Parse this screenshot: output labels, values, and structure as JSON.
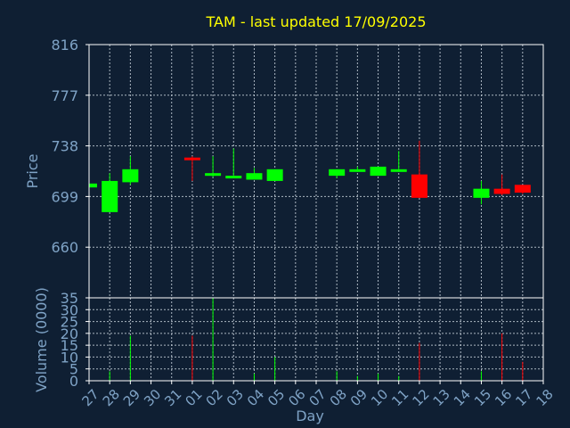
{
  "chart_data": {
    "type": "candlestick",
    "title": "TAM - last updated 17/09/2025",
    "xlabel": "Day",
    "ylabel_price": "Price",
    "ylabel_volume": "Volume (0000)",
    "x_ticks": [
      "27",
      "28",
      "29",
      "30",
      "31",
      "01",
      "02",
      "03",
      "04",
      "05",
      "06",
      "07",
      "08",
      "09",
      "10",
      "11",
      "12",
      "13",
      "14",
      "15",
      "16",
      "17",
      "18"
    ],
    "price_ylim": [
      621,
      816
    ],
    "price_ticks": [
      660,
      699,
      738,
      777,
      816
    ],
    "volume_ylim": [
      0,
      35
    ],
    "volume_ticks": [
      0,
      5,
      10,
      15,
      20,
      25,
      30,
      35
    ],
    "grid": true,
    "up_color": "#00ff00",
    "down_color": "#ff0000",
    "candles": [
      {
        "day": "27",
        "open": 706,
        "close": 709,
        "high": 709,
        "low": 706,
        "volume": 0
      },
      {
        "day": "28",
        "open": 687,
        "close": 711,
        "high": 717,
        "low": 687,
        "volume": 4
      },
      {
        "day": "29",
        "open": 710,
        "close": 720,
        "high": 730,
        "low": 708,
        "volume": 19
      },
      {
        "day": "01",
        "open": 729,
        "close": 727,
        "high": 730,
        "low": 711,
        "volume": 19
      },
      {
        "day": "02",
        "open": 716,
        "close": 717,
        "high": 730,
        "low": 714,
        "volume": 35
      },
      {
        "day": "03",
        "open": 714,
        "close": 715,
        "high": 736,
        "low": 714,
        "volume": 0
      },
      {
        "day": "04",
        "open": 712,
        "close": 717,
        "high": 721,
        "low": 712,
        "volume": 3
      },
      {
        "day": "05",
        "open": 711,
        "close": 720,
        "high": 720,
        "low": 711,
        "volume": 10
      },
      {
        "day": "08",
        "open": 715,
        "close": 720,
        "high": 720,
        "low": 713,
        "volume": 4
      },
      {
        "day": "09",
        "open": 719,
        "close": 720,
        "high": 722,
        "low": 718,
        "volume": 2
      },
      {
        "day": "10",
        "open": 715,
        "close": 722,
        "high": 722,
        "low": 715,
        "volume": 3
      },
      {
        "day": "11",
        "open": 719,
        "close": 720,
        "high": 734,
        "low": 718,
        "volume": 2
      },
      {
        "day": "12",
        "open": 716,
        "close": 698,
        "high": 742,
        "low": 698,
        "volume": 16
      },
      {
        "day": "15",
        "open": 698,
        "close": 705,
        "high": 711,
        "low": 693,
        "volume": 4
      },
      {
        "day": "16",
        "open": 705,
        "close": 701,
        "high": 716,
        "low": 700,
        "volume": 20
      },
      {
        "day": "17",
        "open": 708,
        "close": 702,
        "high": 708,
        "low": 701,
        "volume": 8
      }
    ]
  }
}
